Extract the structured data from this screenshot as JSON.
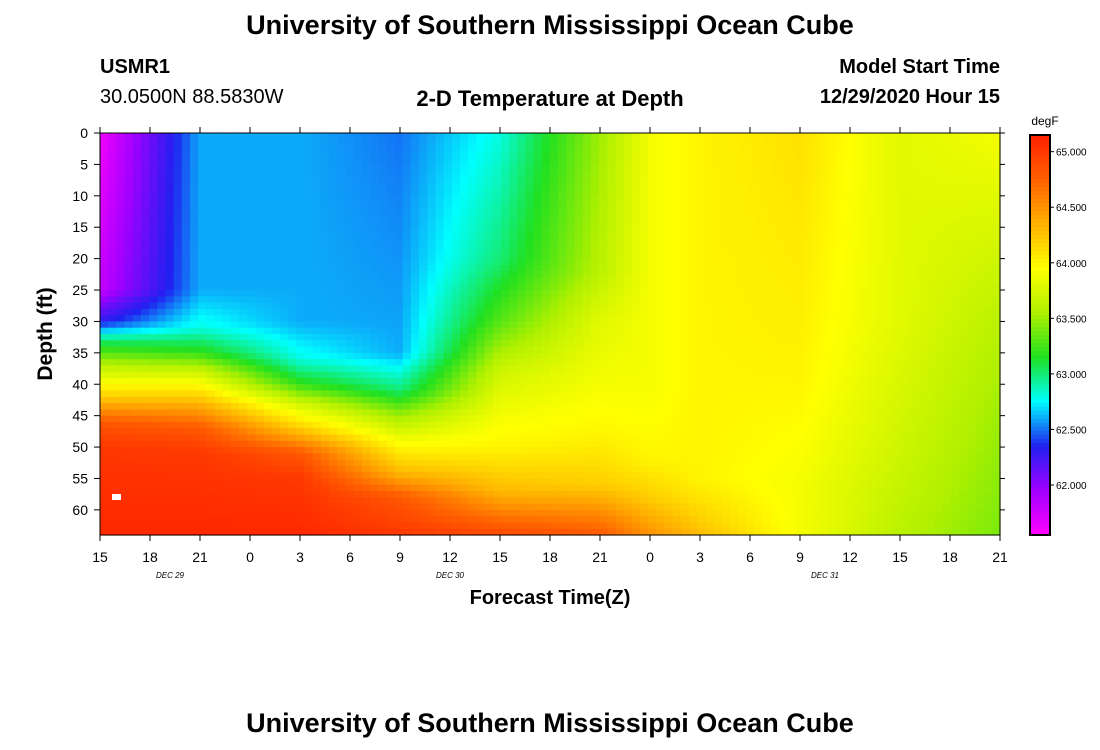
{
  "header": {
    "title": "University of Southern Mississippi Ocean Cube",
    "station_id": "USMR1",
    "station_coords": "30.0500N 88.5830W",
    "plot_title": "2-D Temperature at Depth",
    "model_start_label": "Model Start Time",
    "model_start_value": "12/29/2020 Hour 15"
  },
  "footer": {
    "title": "University of Southern Mississippi Ocean Cube"
  },
  "chart_data": {
    "type": "heatmap",
    "title": "2-D Temperature at Depth",
    "xlabel": "Forecast Time(Z)",
    "ylabel": "Depth (ft)",
    "units": "degF",
    "x_tick_labels": [
      "15",
      "18",
      "21",
      "0",
      "3",
      "6",
      "9",
      "12",
      "15",
      "18",
      "21",
      "0",
      "3",
      "6",
      "9",
      "12",
      "15",
      "18",
      "21"
    ],
    "date_labels": [
      {
        "label": "DEC 29",
        "tick_index": 1.4
      },
      {
        "label": "DEC 30",
        "tick_index": 7
      },
      {
        "label": "DEC 31",
        "tick_index": 14.5
      }
    ],
    "x_hours_range": [
      0,
      54
    ],
    "y_ticks": [
      0,
      5,
      10,
      15,
      20,
      25,
      30,
      35,
      40,
      45,
      50,
      55,
      60
    ],
    "ylim": [
      0,
      64
    ],
    "y_inverted": true,
    "colorbar": {
      "ticks": [
        "65.000",
        "64.500",
        "64.000",
        "63.500",
        "63.000",
        "62.500",
        "62.000"
      ],
      "range": [
        61.55,
        65.15
      ],
      "colors": [
        "#ff00ff",
        "#a000ff",
        "#2020f0",
        "#00ffff",
        "#20e020",
        "#b0f000",
        "#ffff00",
        "#ffb000",
        "#ff6000",
        "#ff2000"
      ]
    },
    "grid": false,
    "values": {
      "hours": [
        0,
        6,
        12,
        18,
        24,
        30,
        33,
        36,
        42,
        48,
        54
      ],
      "profiles": [
        {
          "depth_ft": [
            0,
            25,
            30,
            33,
            37,
            42,
            46,
            50,
            64
          ],
          "temp_degF": [
            61.6,
            61.8,
            62.3,
            63.0,
            63.6,
            64.2,
            64.8,
            65.0,
            65.1
          ]
        },
        {
          "depth_ft": [
            0,
            25,
            31,
            35,
            38,
            42,
            47,
            51,
            64
          ],
          "temp_degF": [
            62.6,
            62.6,
            62.8,
            63.2,
            63.7,
            64.2,
            64.8,
            65.0,
            65.1
          ]
        },
        {
          "depth_ft": [
            0,
            30,
            36,
            40,
            43,
            47,
            51,
            55,
            64
          ],
          "temp_degF": [
            62.6,
            62.6,
            62.8,
            63.2,
            63.7,
            64.2,
            64.8,
            65.0,
            65.1
          ]
        },
        {
          "depth_ft": [
            0,
            35,
            41,
            45,
            49,
            54,
            58,
            64
          ],
          "temp_degF": [
            62.5,
            62.6,
            63.0,
            63.5,
            63.9,
            64.3,
            64.8,
            65.0
          ]
        },
        {
          "depth_ft": [
            0,
            20,
            30,
            38,
            45,
            50,
            57,
            64
          ],
          "temp_degF": [
            62.8,
            63.0,
            63.3,
            63.7,
            63.9,
            64.0,
            64.3,
            64.9
          ]
        },
        {
          "depth_ft": [
            0,
            22,
            30,
            40,
            48,
            56,
            64
          ],
          "temp_degF": [
            63.5,
            63.6,
            63.8,
            63.9,
            64.0,
            64.2,
            64.8
          ]
        },
        {
          "depth_ft": [
            0,
            40,
            52,
            58,
            64
          ],
          "temp_degF": [
            63.9,
            63.9,
            64.0,
            64.2,
            64.5
          ]
        },
        {
          "depth_ft": [
            0,
            40,
            55,
            62,
            64
          ],
          "temp_degF": [
            64.0,
            64.0,
            64.0,
            64.2,
            64.3
          ]
        },
        {
          "depth_ft": [
            0,
            40,
            56,
            64
          ],
          "temp_degF": [
            64.1,
            64.0,
            63.9,
            63.9
          ]
        },
        {
          "depth_ft": [
            0,
            30,
            50,
            64
          ],
          "temp_degF": [
            63.8,
            63.8,
            63.7,
            63.6
          ]
        },
        {
          "depth_ft": [
            0,
            30,
            45,
            64
          ],
          "temp_degF": [
            63.9,
            63.6,
            63.5,
            63.4
          ]
        }
      ]
    }
  }
}
